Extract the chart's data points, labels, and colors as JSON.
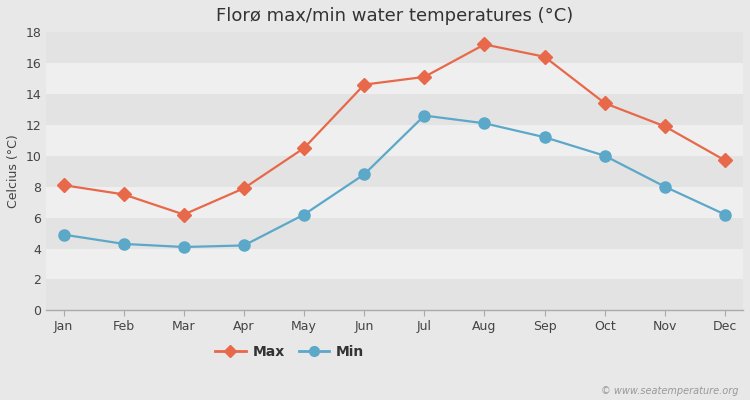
{
  "title": "Florø max/min water temperatures (°C)",
  "months": [
    "Jan",
    "Feb",
    "Mar",
    "Apr",
    "May",
    "Jun",
    "Jul",
    "Aug",
    "Sep",
    "Oct",
    "Nov",
    "Dec"
  ],
  "max_values": [
    8.1,
    7.5,
    6.2,
    7.9,
    10.5,
    14.6,
    15.1,
    17.2,
    16.4,
    13.4,
    11.9,
    9.7
  ],
  "min_values": [
    4.9,
    4.3,
    4.1,
    4.2,
    6.2,
    8.8,
    12.6,
    12.1,
    11.2,
    10.0,
    8.0,
    6.2
  ],
  "max_color": "#e8684a",
  "min_color": "#5ba8c9",
  "ylabel": "Celcius (°C)",
  "ylim": [
    0,
    18
  ],
  "yticks": [
    0,
    2,
    4,
    6,
    8,
    10,
    12,
    14,
    16,
    18
  ],
  "bg_color": "#e8e8e8",
  "band_light": "#efefef",
  "band_dark": "#e3e3e3",
  "title_fontsize": 13,
  "axis_fontsize": 9,
  "legend_labels": [
    "Max",
    "Min"
  ],
  "watermark": "© www.seatemperature.org",
  "line_width": 1.6,
  "marker_size_max": 7,
  "marker_size_min": 8
}
